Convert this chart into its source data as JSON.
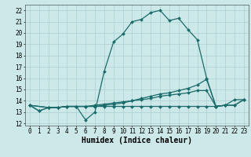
{
  "xlabel": "Humidex (Indice chaleur)",
  "xlim": [
    -0.5,
    23.5
  ],
  "ylim": [
    11.8,
    22.5
  ],
  "yticks": [
    12,
    13,
    14,
    15,
    16,
    17,
    18,
    19,
    20,
    21,
    22
  ],
  "xticks": [
    0,
    1,
    2,
    3,
    4,
    5,
    6,
    7,
    8,
    9,
    10,
    11,
    12,
    13,
    14,
    15,
    16,
    17,
    18,
    19,
    20,
    21,
    22,
    23
  ],
  "bg_color": "#cde8e8",
  "line_color": "#1a6b6b",
  "grid_color": "#aacfcf",
  "lines": [
    {
      "x": [
        0,
        1,
        2,
        3,
        4,
        5,
        6,
        7,
        8,
        9,
        10,
        11,
        12,
        13,
        14,
        15,
        16,
        17,
        18,
        19,
        20,
        21
      ],
      "y": [
        13.6,
        13.1,
        13.4,
        13.4,
        13.5,
        13.5,
        12.3,
        13.0,
        16.6,
        19.2,
        19.9,
        21.0,
        21.2,
        21.8,
        22.0,
        21.1,
        21.3,
        20.3,
        19.4,
        16.0,
        13.5,
        13.6
      ]
    },
    {
      "x": [
        0,
        1,
        2,
        3,
        4,
        5,
        6,
        7,
        8,
        9,
        10,
        11,
        12,
        13,
        14,
        15,
        16,
        17,
        18,
        19,
        20,
        21,
        22,
        23
      ],
      "y": [
        13.6,
        13.1,
        13.4,
        13.4,
        13.5,
        13.5,
        13.5,
        13.6,
        13.7,
        13.8,
        13.9,
        14.0,
        14.1,
        14.2,
        14.4,
        14.5,
        14.6,
        14.7,
        14.9,
        14.9,
        13.5,
        13.6,
        13.6,
        14.1
      ]
    },
    {
      "x": [
        0,
        2,
        3,
        4,
        5,
        6,
        7,
        8,
        9,
        10,
        11,
        12,
        13,
        14,
        15,
        16,
        17,
        18,
        19,
        20,
        21,
        22,
        23
      ],
      "y": [
        13.6,
        13.4,
        13.4,
        13.5,
        13.5,
        13.5,
        13.5,
        13.6,
        13.7,
        13.8,
        14.0,
        14.2,
        14.4,
        14.6,
        14.7,
        14.9,
        15.1,
        15.4,
        15.9,
        13.5,
        13.6,
        13.6,
        14.1
      ]
    },
    {
      "x": [
        0,
        2,
        3,
        4,
        5,
        6,
        7,
        8,
        9,
        10,
        11,
        12,
        13,
        14,
        15,
        16,
        17,
        18,
        19,
        20,
        21,
        22,
        23
      ],
      "y": [
        13.6,
        13.4,
        13.4,
        13.5,
        13.5,
        13.5,
        13.5,
        13.5,
        13.5,
        13.5,
        13.5,
        13.5,
        13.5,
        13.5,
        13.5,
        13.5,
        13.5,
        13.5,
        13.5,
        13.5,
        13.6,
        14.1,
        14.1
      ]
    }
  ],
  "marker": "D",
  "markersize": 2.0,
  "linewidth": 0.9,
  "tick_fontsize": 5.5,
  "xlabel_fontsize": 7,
  "font_family": "monospace"
}
